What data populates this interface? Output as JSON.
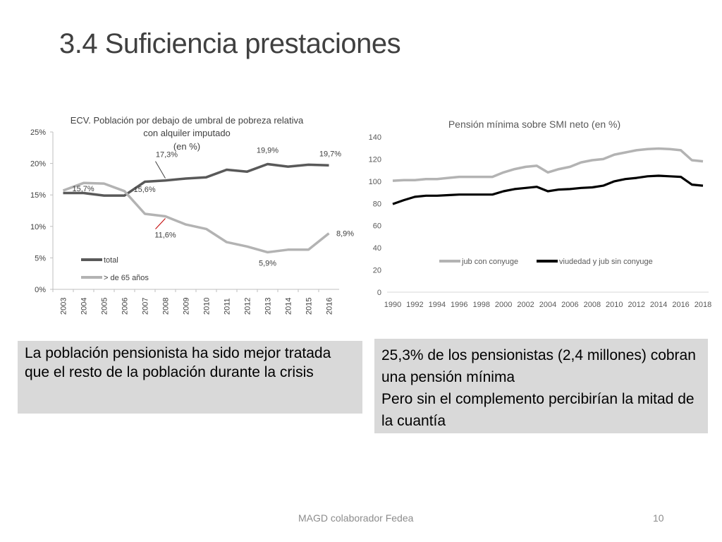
{
  "slide": {
    "title": "3.4 Suficiencia prestaciones",
    "footer": "MAGD colaborador Fedea",
    "page_number": "10"
  },
  "boxes": {
    "left": "La población pensionista ha sido mejor tratada que el resto de la población durante la crisis",
    "right_line1": "25,3% de los pensionistas (2,4 millones) cobran una pensión mínima",
    "right_line2": "Pero sin el complemento percibirían la mitad de la cuantía"
  },
  "chart_data": [
    {
      "type": "line",
      "title": "ECV. Población por debajo de umbral de pobreza relativa con alquiler imputado (en %)",
      "title_lines": [
        "ECV. Población por debajo de umbral de pobreza relativa",
        "con alquiler imputado",
        "(en %)"
      ],
      "x": [
        "2003",
        "2004",
        "2005",
        "2006",
        "2007",
        "2008",
        "2009",
        "2010",
        "2011",
        "2012",
        "2013",
        "2014",
        "2015",
        "2016"
      ],
      "ylim": [
        0,
        25
      ],
      "yticks": [
        "0%",
        "5%",
        "10%",
        "15%",
        "20%",
        "25%"
      ],
      "legend_position": "bottom-left",
      "series": [
        {
          "name": "total",
          "color": "#595959",
          "values": [
            15.3,
            15.3,
            14.9,
            14.9,
            17.1,
            17.3,
            17.6,
            17.8,
            19.0,
            18.7,
            19.9,
            19.5,
            19.8,
            19.7
          ]
        },
        {
          "name": "> de 65 años",
          "color": "#b3b3b3",
          "values": [
            15.7,
            16.9,
            16.8,
            15.6,
            12.0,
            11.6,
            10.3,
            9.6,
            7.5,
            6.8,
            5.9,
            6.3,
            6.3,
            8.9
          ]
        }
      ],
      "annotations": [
        "15,7%",
        "15,6%",
        "17,3%",
        "11,6%",
        "19,9%",
        "5,9%",
        "19,7%",
        "8,9%"
      ]
    },
    {
      "type": "line",
      "title": "Pensión mínima sobre SMI neto (en %)",
      "x": [
        1990,
        1991,
        1992,
        1993,
        1994,
        1995,
        1996,
        1997,
        1998,
        1999,
        2000,
        2001,
        2002,
        2003,
        2004,
        2005,
        2006,
        2007,
        2008,
        2009,
        2010,
        2011,
        2012,
        2013,
        2014,
        2015,
        2016,
        2017,
        2018
      ],
      "xticks": [
        "1990",
        "1992",
        "1994",
        "1996",
        "1998",
        "2000",
        "2002",
        "2004",
        "2006",
        "2008",
        "2010",
        "2012",
        "2014",
        "2016",
        "2018"
      ],
      "ylim": [
        0,
        140
      ],
      "yticks": [
        "0",
        "20",
        "40",
        "60",
        "80",
        "100",
        "120",
        "140"
      ],
      "legend_position": "middle",
      "series": [
        {
          "name": "jub con conyuge",
          "color": "#b3b3b3",
          "values": [
            100.5,
            101,
            101,
            102,
            102,
            103,
            104,
            104,
            104,
            104,
            108,
            111,
            113,
            114,
            108,
            111,
            113,
            117,
            119,
            120,
            124,
            126,
            128,
            129,
            129.5,
            129,
            128,
            119,
            118
          ]
        },
        {
          "name": "viudedad y jub sin conyuge",
          "color": "#000000",
          "values": [
            79.5,
            83,
            86,
            87,
            87,
            87.5,
            88,
            88,
            88,
            88,
            91,
            93,
            94,
            95,
            91,
            92.5,
            93,
            94,
            94.5,
            96,
            100,
            102,
            103,
            104.5,
            105,
            104.5,
            104,
            97,
            96
          ]
        }
      ]
    }
  ]
}
